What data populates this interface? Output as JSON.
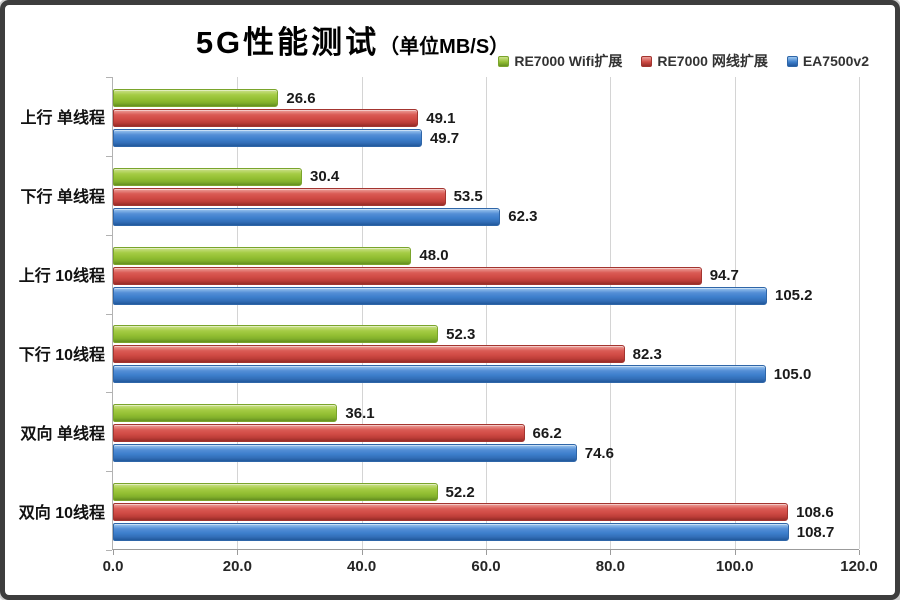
{
  "chart_data": {
    "type": "bar",
    "orientation": "horizontal",
    "title": "5G性能测试",
    "title_unit": "（单位MB/S）",
    "categories": [
      "上行 单线程",
      "下行 单线程",
      "上行 10线程",
      "下行 10线程",
      "双向 单线程",
      "双向 10线程"
    ],
    "series": [
      {
        "name": "RE7000 Wifi扩展",
        "color": "#93bf33",
        "values": [
          26.6,
          30.4,
          48.0,
          52.3,
          36.1,
          52.2
        ]
      },
      {
        "name": "RE7000 网线扩展",
        "color": "#cf4a44",
        "values": [
          49.1,
          53.5,
          94.7,
          82.3,
          66.2,
          108.6
        ]
      },
      {
        "name": "EA7500v2",
        "color": "#3c7ecb",
        "values": [
          49.7,
          62.3,
          105.2,
          105.0,
          74.6,
          108.7
        ]
      }
    ],
    "xlim": [
      0,
      120
    ],
    "x_ticks": [
      "0.0",
      "20.0",
      "40.0",
      "60.0",
      "80.0",
      "100.0",
      "120.0"
    ],
    "grid": true,
    "legend_position": "top-right",
    "value_labels": true,
    "value_label_format": "one-decimal"
  }
}
